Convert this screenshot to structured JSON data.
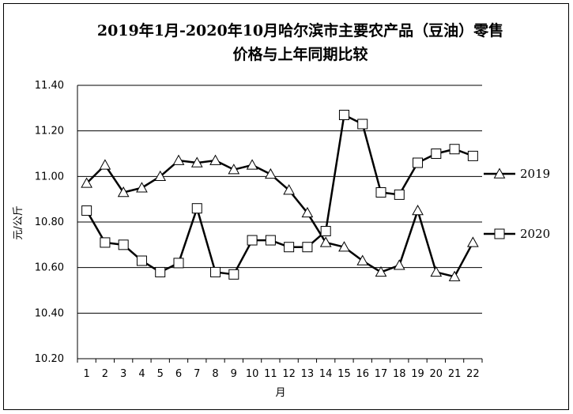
{
  "chart_data": {
    "type": "line",
    "title": "2019年1月-2020年10月哈尔滨市主要农产品（豆油）零售价格与上年同期比较",
    "xlabel": "月",
    "ylabel": "元/公斤",
    "ylim": [
      10.2,
      11.4
    ],
    "yticks": [
      "10.20",
      "10.40",
      "10.60",
      "10.80",
      "11.00",
      "11.20",
      "11.40"
    ],
    "grid": true,
    "legend": "right",
    "x": [
      "1",
      "2",
      "3",
      "4",
      "5",
      "6",
      "7",
      "8",
      "9",
      "10",
      "11",
      "12",
      "13",
      "14",
      "15",
      "16",
      "17",
      "18",
      "19",
      "20",
      "21",
      "22"
    ],
    "series": [
      {
        "name": "2019",
        "marker": "triangle",
        "values": [
          10.97,
          11.05,
          10.93,
          10.95,
          11.0,
          11.07,
          11.06,
          11.07,
          11.03,
          11.05,
          11.01,
          10.94,
          10.84,
          10.71,
          10.69,
          10.63,
          10.58,
          10.61,
          10.85,
          10.58,
          10.56,
          10.71
        ]
      },
      {
        "name": "2020",
        "marker": "square",
        "values": [
          10.85,
          10.71,
          10.7,
          10.63,
          10.58,
          10.62,
          10.86,
          10.58,
          10.57,
          10.72,
          10.72,
          10.69,
          10.69,
          10.76,
          11.27,
          11.23,
          10.93,
          10.92,
          11.06,
          11.1,
          11.12,
          11.09
        ]
      }
    ]
  }
}
